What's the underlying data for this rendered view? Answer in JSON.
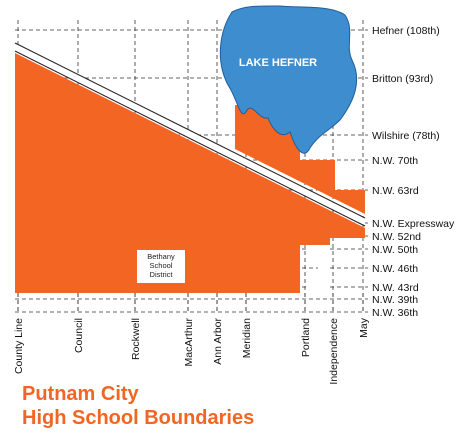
{
  "map": {
    "lake_label": "Lake Hefner",
    "east_west_streets": [
      "Hefner (108th)",
      "Britton (93rd)",
      "Wilshire (78th)",
      "N.W. 70th",
      "N.W. 63rd",
      "N.W. Expressway",
      "N.W. 52nd",
      "N.W. 50th",
      "N.W. 46th",
      "N.W. 43rd",
      "N.W. 39th",
      "N.W. 36th"
    ],
    "north_south_streets": [
      "County Line",
      "Council",
      "Rockwell",
      "MacArthur",
      "Ann Arbor",
      "Meridian",
      "Portland",
      "Independence",
      "May"
    ],
    "bethany_label": [
      "Bethany",
      "School",
      "District"
    ],
    "title": [
      "Putnam City",
      "High School Boundaries"
    ]
  }
}
